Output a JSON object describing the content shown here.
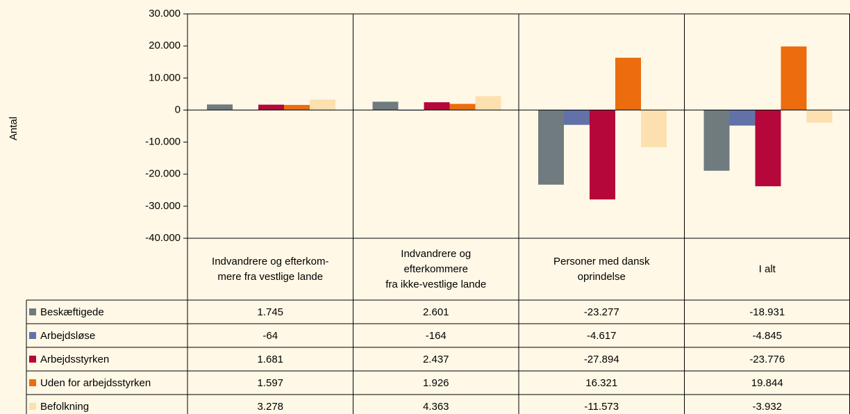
{
  "chart_data": {
    "type": "bar",
    "y_label": "Antal",
    "categories": [
      "Indvandrere og efterkom-\nmere fra vestlige lande",
      "Indvandrere og\nefterkommere\nfra ikke-vestlige lande",
      "Personer med dansk\noprindelse",
      "I alt"
    ],
    "series": [
      {
        "name": "Beskæftigede",
        "color": "#6f7b7f",
        "values": [
          1745,
          2601,
          -23277,
          -18931
        ],
        "value_labels": [
          "1.745",
          "2.601",
          "-23.277",
          "-18.931"
        ]
      },
      {
        "name": "Arbejdsløse",
        "color": "#6272a8",
        "values": [
          -64,
          -164,
          -4617,
          -4845
        ],
        "value_labels": [
          "-64",
          "-164",
          "-4.617",
          "-4.845"
        ]
      },
      {
        "name": "Arbejdsstyrken",
        "color": "#b5073a",
        "values": [
          1681,
          2437,
          -27894,
          -23776
        ],
        "value_labels": [
          "1.681",
          "2.437",
          "-27.894",
          "-23.776"
        ]
      },
      {
        "name": "Uden for arbejdsstyrken",
        "color": "#ec6c0e",
        "values": [
          1597,
          1926,
          16321,
          19844
        ],
        "value_labels": [
          "1.597",
          "1.926",
          "16.321",
          "19.844"
        ]
      },
      {
        "name": "Befolkning",
        "color": "#fde0b0",
        "values": [
          3278,
          4363,
          -11573,
          -3932
        ],
        "value_labels": [
          "3.278",
          "4.363",
          "-11.573",
          "-3.932"
        ]
      }
    ],
    "ylim": [
      -40000,
      30000
    ],
    "yticks": [
      {
        "value": -40000,
        "label": "-40.000"
      },
      {
        "value": -30000,
        "label": "-30.000"
      },
      {
        "value": -20000,
        "label": "-20.000"
      },
      {
        "value": -10000,
        "label": "-10.000"
      },
      0,
      {
        "value": 10000,
        "label": "10.000"
      },
      {
        "value": 20000,
        "label": "20.000"
      },
      {
        "value": 30000,
        "label": "30.000"
      }
    ]
  }
}
